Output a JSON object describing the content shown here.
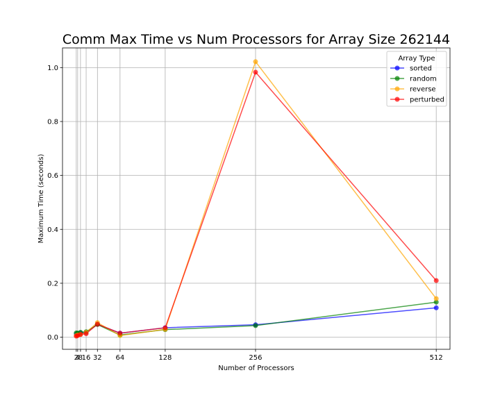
{
  "chart_data": {
    "type": "line",
    "title": "Comm Max Time vs Num Processors for Array Size 262144",
    "xlabel": "Number of Processors",
    "ylabel": "Maximum Time (seconds)",
    "x": [
      2,
      4,
      8,
      16,
      32,
      64,
      128,
      256,
      512
    ],
    "xticks": [
      2,
      4,
      8,
      16,
      32,
      64,
      128,
      256,
      512
    ],
    "xtick_labels": [
      "2",
      "4",
      "8",
      "16",
      "32",
      "64",
      "128",
      "256",
      "512"
    ],
    "yticks": [
      0.0,
      0.2,
      0.4,
      0.6,
      0.8,
      1.0
    ],
    "ytick_labels": [
      "0.0",
      "0.2",
      "0.4",
      "0.6",
      "0.8",
      "1.0"
    ],
    "xlim": [
      -17.5,
      531.5
    ],
    "ylim": [
      -0.045,
      1.073
    ],
    "grid": true,
    "legend": {
      "title": "Array Type",
      "placement": "top-right"
    },
    "series": [
      {
        "name": "sorted",
        "color": "#0000ff",
        "values": [
          0.012,
          0.014,
          0.016,
          0.017,
          0.048,
          0.015,
          0.035,
          0.046,
          0.109
        ]
      },
      {
        "name": "random",
        "color": "#008000",
        "values": [
          0.016,
          0.015,
          0.018,
          0.02,
          0.047,
          0.008,
          0.028,
          0.043,
          0.13
        ]
      },
      {
        "name": "reverse",
        "color": "#ffa500",
        "values": [
          0.006,
          0.008,
          0.01,
          0.018,
          0.054,
          0.006,
          0.029,
          1.022,
          0.143
        ]
      },
      {
        "name": "perturbed",
        "color": "#ff0000",
        "values": [
          0.004,
          0.006,
          0.01,
          0.013,
          0.048,
          0.015,
          0.035,
          0.983,
          0.21
        ]
      }
    ]
  }
}
